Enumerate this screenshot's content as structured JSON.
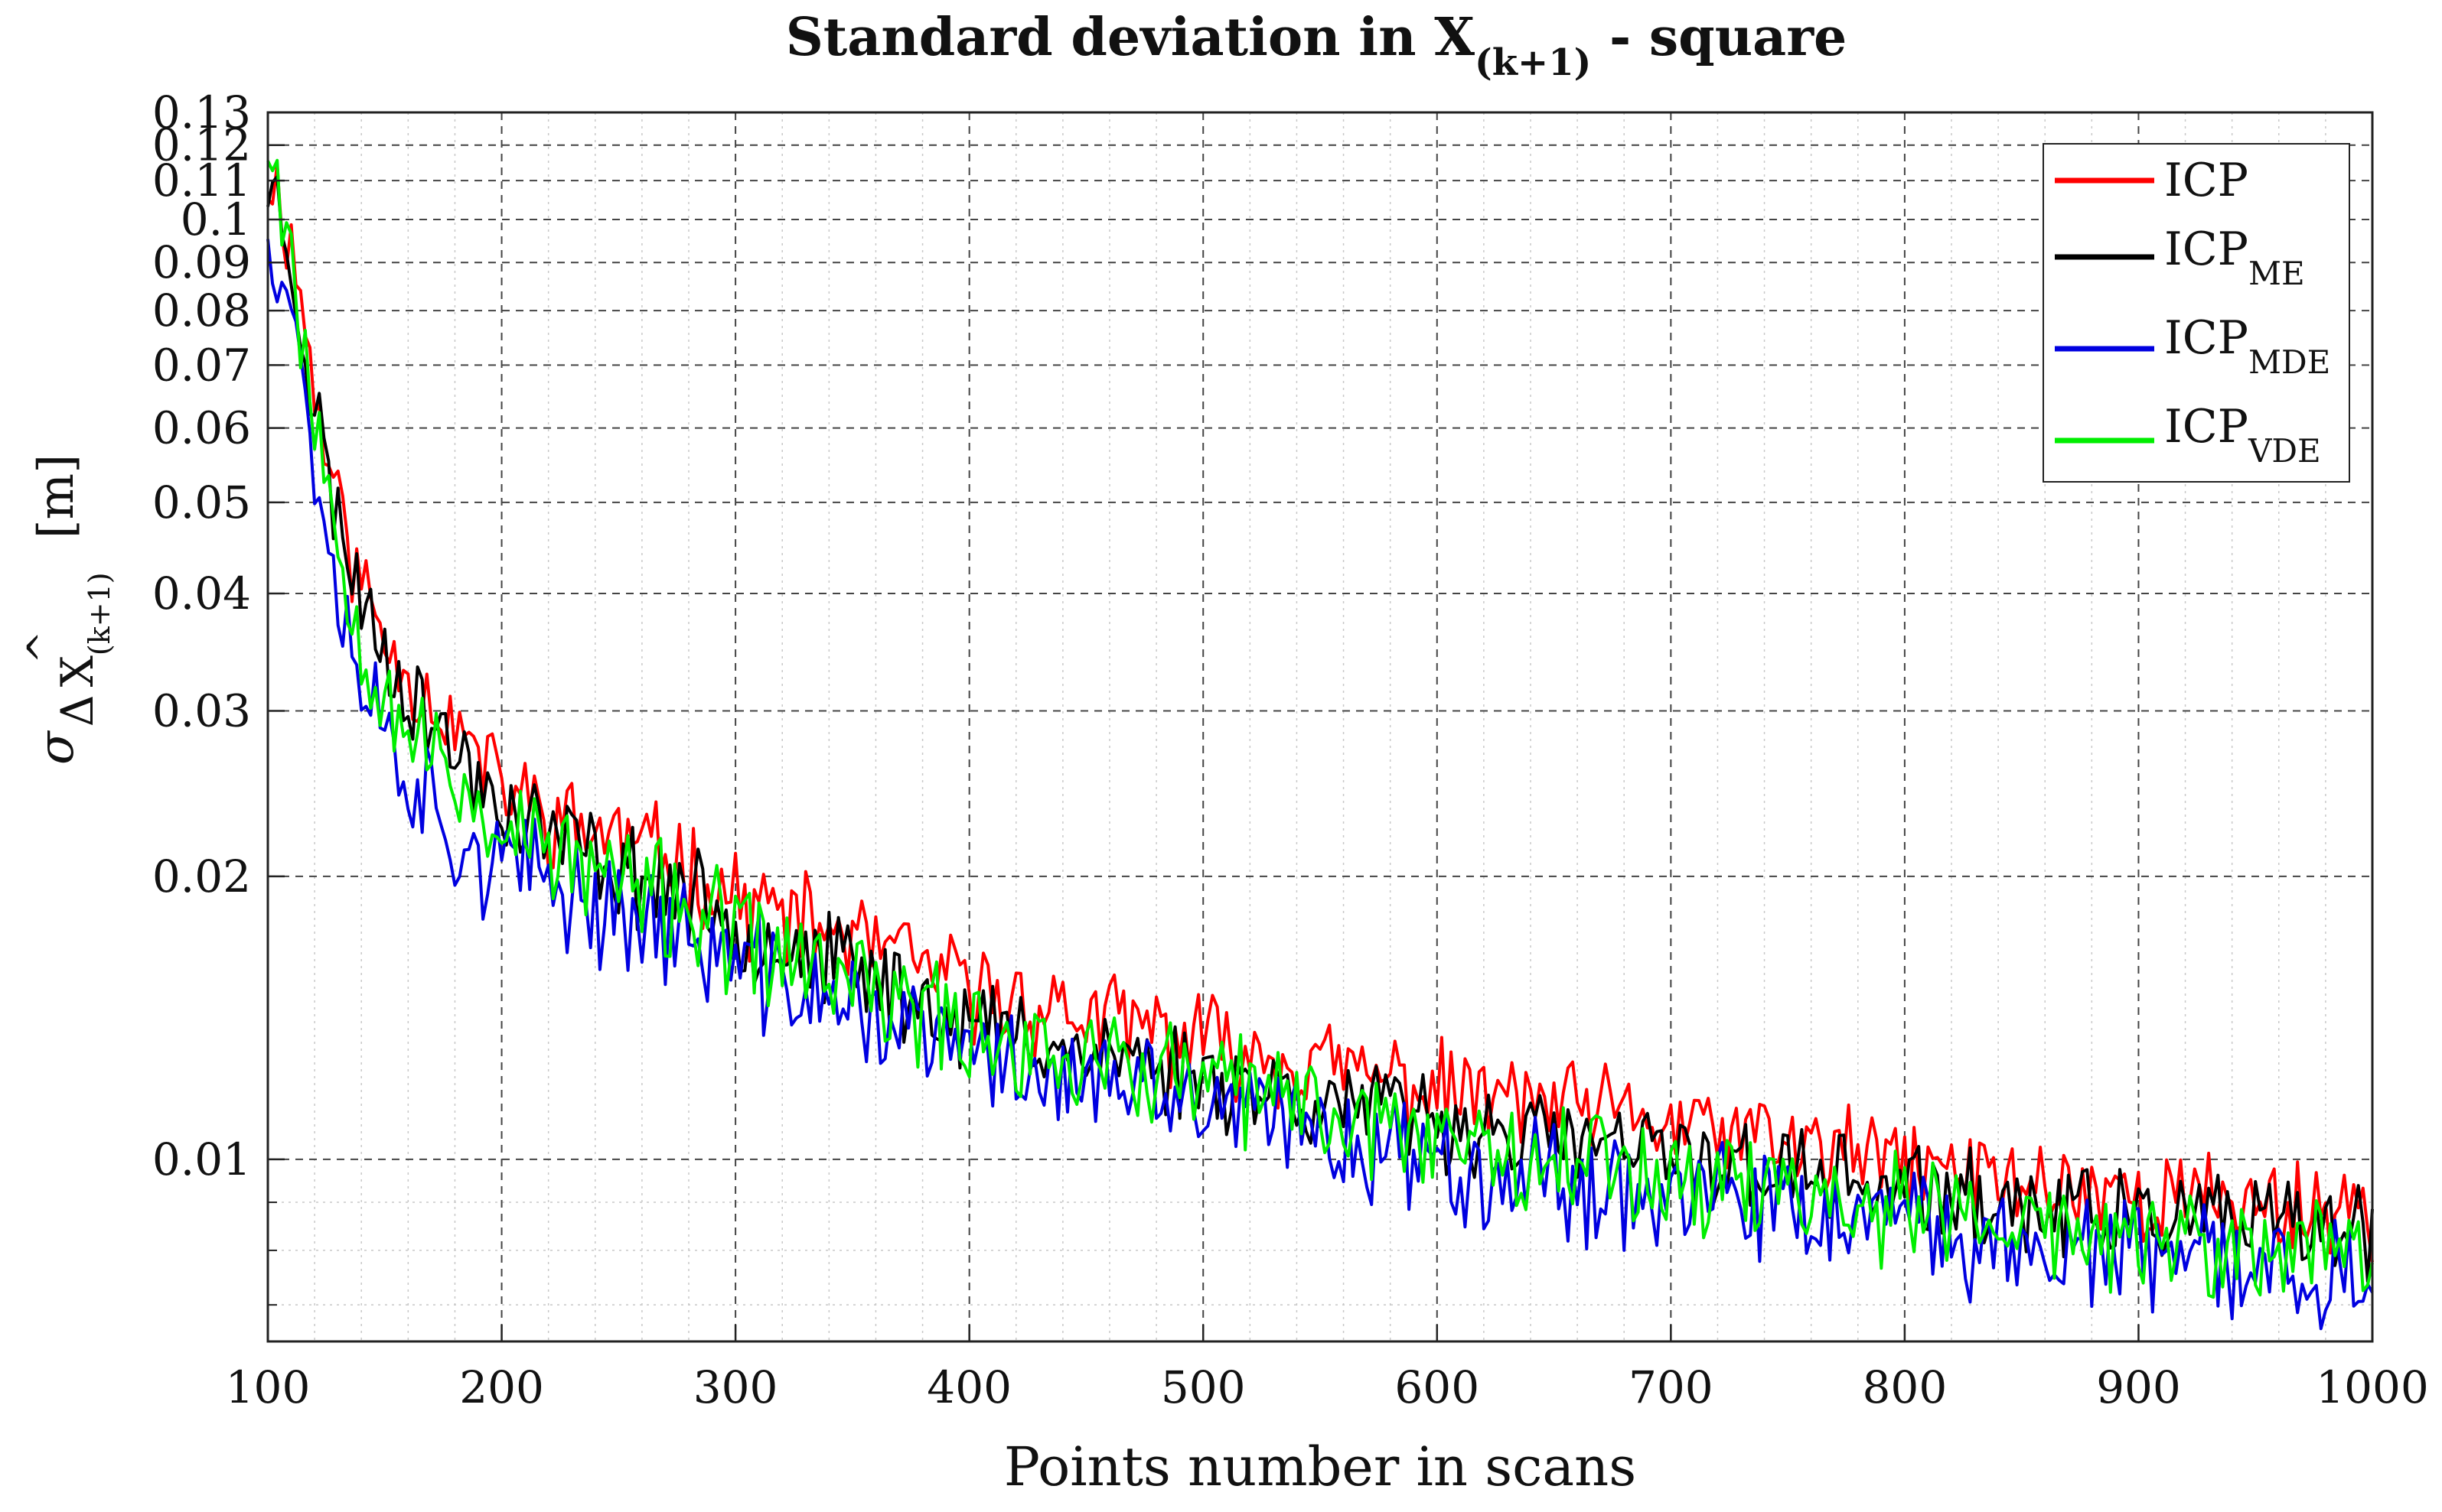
{
  "chart_data": {
    "type": "line",
    "title": {
      "main": "Standard deviation in X",
      "subscript": "(k+1)",
      "suffix": " - square"
    },
    "xlabel": "Points number in scans",
    "ylabel": {
      "sigma": "σ",
      "delta": "Δ",
      "var": "X",
      "hat": "^",
      "subscript": "(k+1)",
      "unit": "[m]"
    },
    "xlim": [
      100,
      1000
    ],
    "ylim": [
      0.0064,
      0.13
    ],
    "yscale": "log",
    "grid": true,
    "minor_grid": true,
    "legend_position": "top-right",
    "x_ticks": [
      100,
      200,
      300,
      400,
      500,
      600,
      700,
      800,
      900,
      1000
    ],
    "x_tick_labels": [
      "100",
      "200",
      "300",
      "400",
      "500",
      "600",
      "700",
      "800",
      "900",
      "1000"
    ],
    "y_ticks": [
      0.01,
      0.02,
      0.03,
      0.04,
      0.05,
      0.06,
      0.07,
      0.08,
      0.09,
      0.1,
      0.11,
      0.12,
      0.13
    ],
    "y_tick_labels": [
      "0.01",
      "0.02",
      "0.03",
      "0.04",
      "0.05",
      "0.06",
      "0.07",
      "0.08",
      "0.09",
      "0.1",
      "0.11",
      "0.12",
      "0.13"
    ],
    "x_minor_ticks": [
      120,
      140,
      160,
      180,
      220,
      240,
      260,
      280,
      320,
      340,
      360,
      380,
      420,
      440,
      460,
      480,
      520,
      540,
      560,
      580,
      620,
      640,
      660,
      680,
      720,
      740,
      760,
      780,
      820,
      840,
      860,
      880,
      920,
      940,
      960,
      980
    ],
    "y_minor_ticks": [
      0.007,
      0.008,
      0.009
    ],
    "series": [
      {
        "name": "ICP",
        "sub": "",
        "color": "#ff0000",
        "x": [
          101,
          105,
          110,
          115,
          120,
          130,
          140,
          150,
          160,
          180,
          200,
          225,
          250,
          275,
          300,
          325,
          350,
          375,
          400,
          450,
          500,
          550,
          600,
          650,
          700,
          750,
          800,
          850,
          900,
          950,
          1000
        ],
        "values": [
          0.113,
          0.105,
          0.095,
          0.08,
          0.066,
          0.05,
          0.041,
          0.036,
          0.033,
          0.029,
          0.025,
          0.023,
          0.022,
          0.021,
          0.019,
          0.018,
          0.0172,
          0.0162,
          0.0152,
          0.0142,
          0.0134,
          0.0126,
          0.0119,
          0.0114,
          0.0109,
          0.0104,
          0.0099,
          0.0095,
          0.0092,
          0.009,
          0.0089
        ],
        "noise": 0.1,
        "seed": 11
      },
      {
        "name": "ICP",
        "sub": "ME",
        "color": "#000000",
        "x": [
          101,
          105,
          110,
          115,
          120,
          130,
          140,
          150,
          160,
          180,
          200,
          225,
          250,
          275,
          300,
          325,
          350,
          375,
          400,
          450,
          500,
          550,
          600,
          650,
          700,
          750,
          800,
          850,
          900,
          950,
          1000
        ],
        "values": [
          0.11,
          0.102,
          0.09,
          0.076,
          0.063,
          0.048,
          0.04,
          0.035,
          0.032,
          0.027,
          0.024,
          0.022,
          0.0205,
          0.0195,
          0.0178,
          0.0168,
          0.016,
          0.015,
          0.014,
          0.0131,
          0.0124,
          0.0116,
          0.011,
          0.0105,
          0.0101,
          0.0097,
          0.0093,
          0.0089,
          0.0087,
          0.0085,
          0.0084
        ],
        "noise": 0.1,
        "seed": 23
      },
      {
        "name": "ICP",
        "sub": "MDE",
        "color": "#0000e0",
        "x": [
          101,
          105,
          110,
          115,
          120,
          130,
          140,
          150,
          160,
          180,
          200,
          225,
          250,
          275,
          300,
          325,
          350,
          375,
          400,
          450,
          500,
          550,
          600,
          650,
          700,
          750,
          800,
          850,
          900,
          950,
          1000
        ],
        "values": [
          0.1,
          0.092,
          0.082,
          0.068,
          0.056,
          0.04,
          0.033,
          0.029,
          0.026,
          0.022,
          0.0205,
          0.0195,
          0.0185,
          0.0175,
          0.0162,
          0.0152,
          0.0145,
          0.0137,
          0.013,
          0.0121,
          0.0114,
          0.0107,
          0.0101,
          0.0096,
          0.0092,
          0.0088,
          0.0085,
          0.0081,
          0.0079,
          0.0077,
          0.0076
        ],
        "noise": 0.12,
        "seed": 37
      },
      {
        "name": "ICP",
        "sub": "VDE",
        "color": "#00ee00",
        "x": [
          101,
          105,
          110,
          115,
          120,
          130,
          140,
          150,
          160,
          180,
          200,
          225,
          250,
          275,
          300,
          325,
          350,
          375,
          400,
          450,
          500,
          550,
          600,
          650,
          700,
          750,
          800,
          850,
          900,
          950,
          1000
        ],
        "values": [
          0.128,
          0.108,
          0.093,
          0.076,
          0.063,
          0.045,
          0.037,
          0.032,
          0.029,
          0.025,
          0.0228,
          0.021,
          0.0198,
          0.0188,
          0.0172,
          0.0163,
          0.0154,
          0.0146,
          0.0138,
          0.0128,
          0.0121,
          0.0113,
          0.0107,
          0.0102,
          0.0097,
          0.0093,
          0.0089,
          0.0085,
          0.0082,
          0.008,
          0.0079
        ],
        "noise": 0.12,
        "seed": 53
      }
    ]
  }
}
